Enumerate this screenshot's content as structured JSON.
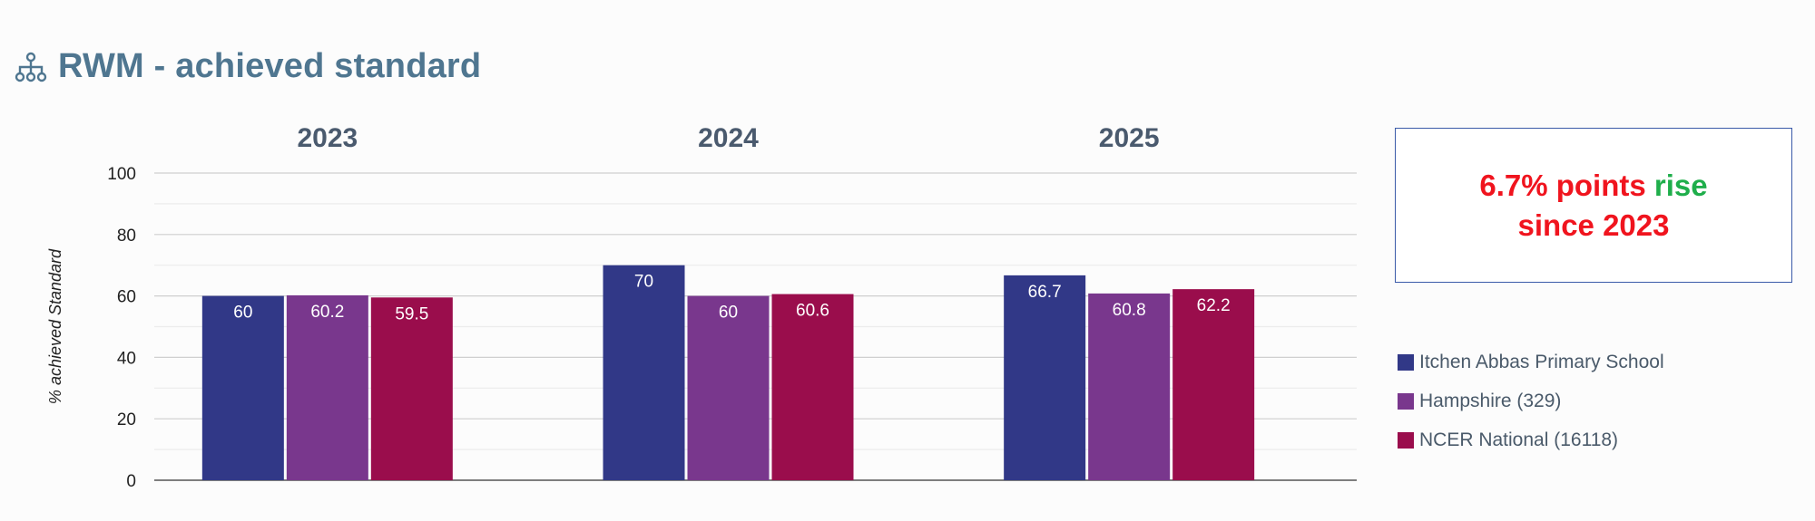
{
  "header": {
    "title": "RWM - achieved standard",
    "icon": "sitemap-icon"
  },
  "callout": {
    "line1_value": "6.7% points",
    "line1_word": "rise",
    "line2": "since 2023",
    "colors": {
      "text": "#f0141e",
      "rise": "#1fae4b",
      "border": "#3a5aa8"
    }
  },
  "chart_data": {
    "type": "bar",
    "categories": [
      "2023",
      "2024",
      "2025"
    ],
    "series": [
      {
        "name": "Itchen Abbas Primary School",
        "values": [
          60,
          70,
          66.7
        ],
        "labels": [
          "60",
          "70",
          "66.7"
        ],
        "color": "#313887"
      },
      {
        "name": "Hampshire (329)",
        "values": [
          60.2,
          60,
          60.8
        ],
        "labels": [
          "60.2",
          "60",
          "60.8"
        ],
        "color": "#79378d"
      },
      {
        "name": "NCER National (16118)",
        "values": [
          59.5,
          60.6,
          62.2
        ],
        "labels": [
          "59.5",
          "60.6",
          "62.2"
        ],
        "color": "#9a0d4c"
      }
    ],
    "ylabel": "% achieved Standard",
    "ylim": [
      0,
      100
    ],
    "yticks": [
      0,
      20,
      40,
      60,
      80,
      100
    ],
    "grid": true,
    "minor_grid": true,
    "legend_position": "right"
  }
}
